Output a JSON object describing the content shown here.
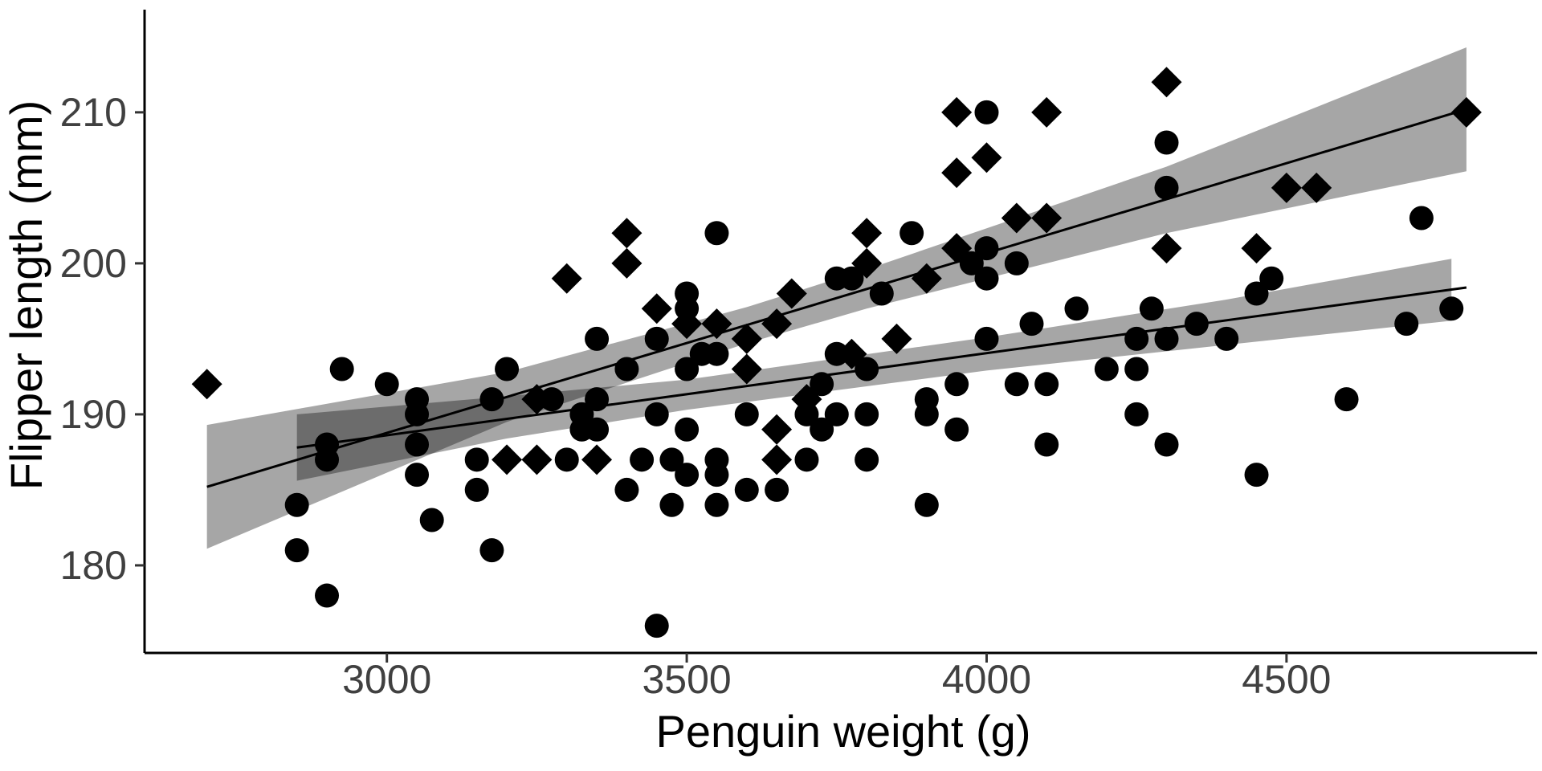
{
  "chart_data": {
    "type": "scatter",
    "title": "",
    "xlabel": "Penguin weight (g)",
    "ylabel": "Flipper length (mm)",
    "x_ticks": [
      3000,
      3500,
      4000,
      4500
    ],
    "y_ticks": [
      180,
      190,
      200,
      210
    ],
    "xlim": [
      2596,
      4926
    ],
    "ylim": [
      174.2,
      216.8
    ],
    "grid": "off",
    "legend": "none",
    "colors": {
      "points": "#000000",
      "regression_line": "#000000",
      "ci_band": "#000000",
      "ci_band_opacity": 0.35,
      "axis_line": "#000000",
      "tick_label": "#404040",
      "background": "#ffffff"
    },
    "series": [
      {
        "name": "circle-group",
        "marker": "circle",
        "points": [
          [
            2850,
            181
          ],
          [
            2850,
            184
          ],
          [
            2900,
            178
          ],
          [
            2900,
            187
          ],
          [
            2900,
            188
          ],
          [
            2925,
            193
          ],
          [
            3000,
            192
          ],
          [
            3050,
            191
          ],
          [
            3050,
            190
          ],
          [
            3050,
            188
          ],
          [
            3050,
            186
          ],
          [
            3075,
            183
          ],
          [
            3150,
            187
          ],
          [
            3150,
            185
          ],
          [
            3175,
            191
          ],
          [
            3175,
            181
          ],
          [
            3200,
            193
          ],
          [
            3275,
            191
          ],
          [
            3300,
            187
          ],
          [
            3325,
            190
          ],
          [
            3325,
            189
          ],
          [
            3350,
            189
          ],
          [
            3350,
            191
          ],
          [
            3350,
            195
          ],
          [
            3400,
            193
          ],
          [
            3400,
            185
          ],
          [
            3425,
            187
          ],
          [
            3450,
            190
          ],
          [
            3450,
            195
          ],
          [
            3450,
            176
          ],
          [
            3475,
            187
          ],
          [
            3475,
            184
          ],
          [
            3500,
            189
          ],
          [
            3500,
            193
          ],
          [
            3500,
            197
          ],
          [
            3500,
            198
          ],
          [
            3500,
            186
          ],
          [
            3525,
            194
          ],
          [
            3550,
            194
          ],
          [
            3550,
            202
          ],
          [
            3550,
            187
          ],
          [
            3550,
            186
          ],
          [
            3550,
            184
          ],
          [
            3600,
            190
          ],
          [
            3600,
            185
          ],
          [
            3650,
            185
          ],
          [
            3700,
            187
          ],
          [
            3700,
            190
          ],
          [
            3725,
            192
          ],
          [
            3725,
            189
          ],
          [
            3750,
            190
          ],
          [
            3750,
            194
          ],
          [
            3750,
            199
          ],
          [
            3775,
            199
          ],
          [
            3800,
            193
          ],
          [
            3800,
            190
          ],
          [
            3800,
            187
          ],
          [
            3825,
            198
          ],
          [
            3875,
            202
          ],
          [
            3900,
            191
          ],
          [
            3900,
            190
          ],
          [
            3900,
            184
          ],
          [
            3950,
            192
          ],
          [
            3950,
            189
          ],
          [
            3975,
            200
          ],
          [
            4000,
            201
          ],
          [
            4000,
            199
          ],
          [
            4000,
            195
          ],
          [
            4000,
            210
          ],
          [
            4050,
            200
          ],
          [
            4050,
            192
          ],
          [
            4075,
            196
          ],
          [
            4100,
            192
          ],
          [
            4100,
            188
          ],
          [
            4150,
            197
          ],
          [
            4200,
            193
          ],
          [
            4250,
            195
          ],
          [
            4250,
            193
          ],
          [
            4250,
            190
          ],
          [
            4275,
            197
          ],
          [
            4300,
            205
          ],
          [
            4300,
            208
          ],
          [
            4300,
            195
          ],
          [
            4300,
            188
          ],
          [
            4350,
            196
          ],
          [
            4400,
            195
          ],
          [
            4450,
            198
          ],
          [
            4450,
            186
          ],
          [
            4475,
            199
          ],
          [
            4600,
            191
          ],
          [
            4700,
            196
          ],
          [
            4725,
            203
          ],
          [
            4775,
            197
          ]
        ],
        "regression": {
          "x0": 2850,
          "y0": 187.8,
          "x1": 4800,
          "y1": 198.4
        },
        "ci_band": {
          "top": [
            [
              2850,
              190.0
            ],
            [
              3200,
              191.2
            ],
            [
              3500,
              192.3
            ],
            [
              4000,
              195.1
            ],
            [
              4400,
              197.6
            ],
            [
              4775,
              200.3
            ]
          ],
          "bottom": [
            [
              2850,
              185.6
            ],
            [
              3200,
              188.4
            ],
            [
              3500,
              190.3
            ],
            [
              4000,
              192.9
            ],
            [
              4400,
              194.6
            ],
            [
              4775,
              196.2
            ]
          ]
        }
      },
      {
        "name": "diamond-group",
        "marker": "diamond",
        "points": [
          [
            2700,
            192
          ],
          [
            3200,
            187
          ],
          [
            3250,
            187
          ],
          [
            3250,
            191
          ],
          [
            3300,
            199
          ],
          [
            3350,
            187
          ],
          [
            3400,
            200
          ],
          [
            3400,
            202
          ],
          [
            3450,
            197
          ],
          [
            3500,
            196
          ],
          [
            3550,
            196
          ],
          [
            3600,
            193
          ],
          [
            3600,
            195
          ],
          [
            3650,
            189
          ],
          [
            3650,
            187
          ],
          [
            3650,
            196
          ],
          [
            3675,
            198
          ],
          [
            3700,
            191
          ],
          [
            3775,
            194
          ],
          [
            3800,
            200
          ],
          [
            3800,
            202
          ],
          [
            3850,
            195
          ],
          [
            3900,
            199
          ],
          [
            3950,
            201
          ],
          [
            3950,
            206
          ],
          [
            3950,
            210
          ],
          [
            4000,
            207
          ],
          [
            4050,
            203
          ],
          [
            4100,
            203
          ],
          [
            4100,
            210
          ],
          [
            4300,
            201
          ],
          [
            4300,
            212
          ],
          [
            4450,
            201
          ],
          [
            4500,
            205
          ],
          [
            4550,
            205
          ],
          [
            4800,
            210
          ]
        ],
        "regression": {
          "x0": 2700,
          "y0": 185.2,
          "x1": 4800,
          "y1": 210.2
        },
        "ci_band": {
          "top": [
            [
              2700,
              189.3
            ],
            [
              3200,
              192.8
            ],
            [
              3600,
              197.1
            ],
            [
              3800,
              199.6
            ],
            [
              4300,
              206.4
            ],
            [
              4800,
              214.3
            ]
          ],
          "bottom": [
            [
              2700,
              181.1
            ],
            [
              3200,
              189.5
            ],
            [
              3600,
              194.7
            ],
            [
              3800,
              197.0
            ],
            [
              4300,
              202.0
            ],
            [
              4800,
              206.1
            ]
          ]
        }
      }
    ]
  },
  "layout_text": {
    "x_axis_title": "Penguin weight (g)",
    "y_axis_title": "Flipper length (mm)"
  }
}
